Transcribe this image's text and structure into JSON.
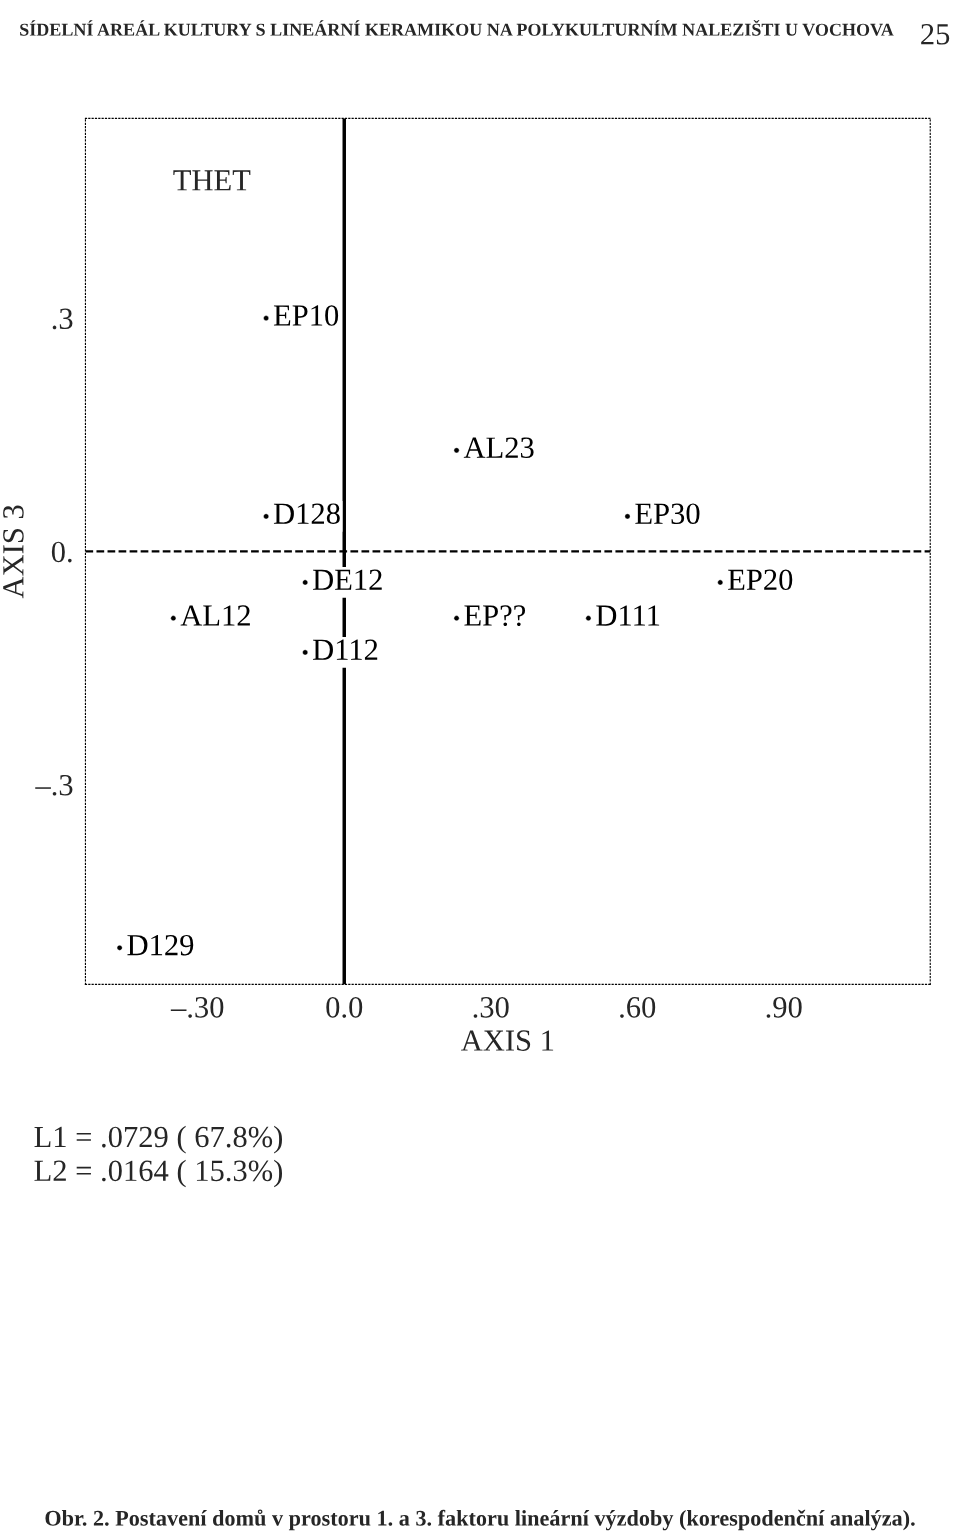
{
  "chart_data": {
    "type": "scatter",
    "title": "SÍDELNÍ AREÁL KULTURY S LINEÁRNÍ KERAMIKOU NA POLYKULTURNÍM NALEZIŠTI U VOCHOVA",
    "subtitle": "25",
    "xlabel": "AXIS 1",
    "ylabel": "AXIS 3",
    "x": [
      -0.16,
      0.23,
      -0.16,
      0.58,
      -0.08,
      0.77,
      -0.35,
      0.23,
      0.5,
      -0.08,
      -0.46
    ],
    "values": [
      0.3,
      0.13,
      0.045,
      0.045,
      -0.04,
      -0.04,
      -0.086,
      -0.086,
      -0.086,
      -0.13,
      -0.51
    ],
    "value_labels": [
      "EP10",
      "AL23",
      "D128",
      "EP30",
      "DE12",
      "EP20",
      "AL12",
      "EP??",
      "D111",
      "D112",
      "D129"
    ],
    "color": "#000000",
    "marker": "circle",
    "xlim": [
      -0.53,
      1.2
    ],
    "ylim": [
      -0.557,
      0.557
    ],
    "xticks": [
      {
        "value": -0.3,
        "label": "–.30"
      },
      {
        "value": 0,
        "label": "0.0"
      },
      {
        "value": 0.3,
        "label": ".30"
      },
      {
        "value": 0.6,
        "label": ".60"
      },
      {
        "value": 0.9,
        "label": ".90"
      }
    ],
    "yticks": [
      {
        "value": -0.3,
        "label": "–.3"
      },
      {
        "value": 0,
        "label": "0."
      },
      {
        "value": 0.3,
        "label": ".3"
      }
    ],
    "ref_lines": [
      {
        "axis": "x",
        "value": 0,
        "line_style": "solid"
      },
      {
        "axis": "y",
        "value": 0,
        "line_style": "dashed"
      }
    ],
    "grid": false,
    "annotations": [
      "THET",
      "L1 = .0729 ( 67.8%)",
      "L2 = .0164 ( 15.3%)",
      "Obr. 2. Postavení domů v prostoru 1. a 3. faktoru lineární výzdoby (korespodenční analýza)."
    ]
  }
}
